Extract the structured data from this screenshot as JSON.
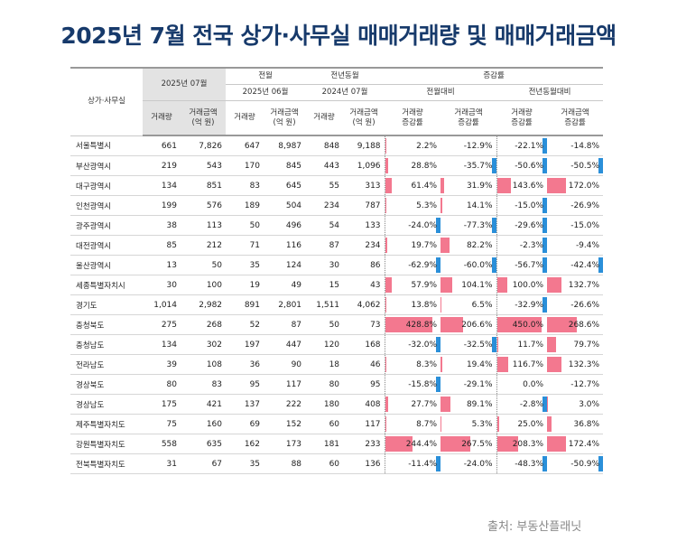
{
  "title": "2025년 7월 전국 상가·사무실 매매거래량 및 매매거래금액",
  "source": "출처: 부동산플래닛",
  "header": {
    "region": "상가·사무실",
    "current_period": "2025년 07월",
    "prev_month_group": "전월",
    "prev_month": "2025년 06월",
    "prev_year_group": "전년동월",
    "prev_year": "2024년 07월",
    "rate_group": "증감률",
    "mom": "전월대비",
    "yoy": "전년동월대비",
    "volume": "거래량",
    "amount_line1": "거래금액",
    "amount_line2": "(억 원)",
    "vol_rate_line1": "거래량",
    "vol_rate_line2": "증감률",
    "amt_rate_line1": "거래금액",
    "amt_rate_line2": "증감률"
  },
  "rows": [
    {
      "region": "서울특별시",
      "vol": "661",
      "amt": "7,826",
      "pm_vol": "647",
      "pm_amt": "8,987",
      "py_vol": "848",
      "py_amt": "9,188",
      "mom_vol": "2.2%",
      "mom_amt": "-12.9%",
      "yoy_vol": "-22.1%",
      "yoy_amt": "-14.8%"
    },
    {
      "region": "부산광역시",
      "vol": "219",
      "amt": "543",
      "pm_vol": "170",
      "pm_amt": "845",
      "py_vol": "443",
      "py_amt": "1,096",
      "mom_vol": "28.8%",
      "mom_amt": "-35.7%",
      "yoy_vol": "-50.6%",
      "yoy_amt": "-50.5%"
    },
    {
      "region": "대구광역시",
      "vol": "134",
      "amt": "851",
      "pm_vol": "83",
      "pm_amt": "645",
      "py_vol": "55",
      "py_amt": "313",
      "mom_vol": "61.4%",
      "mom_amt": "31.9%",
      "yoy_vol": "143.6%",
      "yoy_amt": "172.0%"
    },
    {
      "region": "인천광역시",
      "vol": "199",
      "amt": "576",
      "pm_vol": "189",
      "pm_amt": "504",
      "py_vol": "234",
      "py_amt": "787",
      "mom_vol": "5.3%",
      "mom_amt": "14.1%",
      "yoy_vol": "-15.0%",
      "yoy_amt": "-26.9%"
    },
    {
      "region": "광주광역시",
      "vol": "38",
      "amt": "113",
      "pm_vol": "50",
      "pm_amt": "496",
      "py_vol": "54",
      "py_amt": "133",
      "mom_vol": "-24.0%",
      "mom_amt": "-77.3%",
      "yoy_vol": "-29.6%",
      "yoy_amt": "-15.0%"
    },
    {
      "region": "대전광역시",
      "vol": "85",
      "amt": "212",
      "pm_vol": "71",
      "pm_amt": "116",
      "py_vol": "87",
      "py_amt": "234",
      "mom_vol": "19.7%",
      "mom_amt": "82.2%",
      "yoy_vol": "-2.3%",
      "yoy_amt": "-9.4%"
    },
    {
      "region": "울산광역시",
      "vol": "13",
      "amt": "50",
      "pm_vol": "35",
      "pm_amt": "124",
      "py_vol": "30",
      "py_amt": "86",
      "mom_vol": "-62.9%",
      "mom_amt": "-60.0%",
      "yoy_vol": "-56.7%",
      "yoy_amt": "-42.4%"
    },
    {
      "region": "세종특별자치시",
      "vol": "30",
      "amt": "100",
      "pm_vol": "19",
      "pm_amt": "49",
      "py_vol": "15",
      "py_amt": "43",
      "mom_vol": "57.9%",
      "mom_amt": "104.1%",
      "yoy_vol": "100.0%",
      "yoy_amt": "132.7%"
    },
    {
      "region": "경기도",
      "vol": "1,014",
      "amt": "2,982",
      "pm_vol": "891",
      "pm_amt": "2,801",
      "py_vol": "1,511",
      "py_amt": "4,062",
      "mom_vol": "13.8%",
      "mom_amt": "6.5%",
      "yoy_vol": "-32.9%",
      "yoy_amt": "-26.6%"
    },
    {
      "region": "충청북도",
      "vol": "275",
      "amt": "268",
      "pm_vol": "52",
      "pm_amt": "87",
      "py_vol": "50",
      "py_amt": "73",
      "mom_vol": "428.8%",
      "mom_amt": "206.6%",
      "yoy_vol": "450.0%",
      "yoy_amt": "268.6%"
    },
    {
      "region": "충청남도",
      "vol": "134",
      "amt": "302",
      "pm_vol": "197",
      "pm_amt": "447",
      "py_vol": "120",
      "py_amt": "168",
      "mom_vol": "-32.0%",
      "mom_amt": "-32.5%",
      "yoy_vol": "11.7%",
      "yoy_amt": "79.7%"
    },
    {
      "region": "전라남도",
      "vol": "39",
      "amt": "108",
      "pm_vol": "36",
      "pm_amt": "90",
      "py_vol": "18",
      "py_amt": "46",
      "mom_vol": "8.3%",
      "mom_amt": "19.4%",
      "yoy_vol": "116.7%",
      "yoy_amt": "132.3%"
    },
    {
      "region": "경상북도",
      "vol": "80",
      "amt": "83",
      "pm_vol": "95",
      "pm_amt": "117",
      "py_vol": "80",
      "py_amt": "95",
      "mom_vol": "-15.8%",
      "mom_amt": "-29.1%",
      "yoy_vol": "0.0%",
      "yoy_amt": "-12.7%"
    },
    {
      "region": "경상남도",
      "vol": "175",
      "amt": "421",
      "pm_vol": "137",
      "pm_amt": "222",
      "py_vol": "180",
      "py_amt": "408",
      "mom_vol": "27.7%",
      "mom_amt": "89.1%",
      "yoy_vol": "-2.8%",
      "yoy_amt": "3.0%"
    },
    {
      "region": "제주특별자치도",
      "vol": "75",
      "amt": "160",
      "pm_vol": "69",
      "pm_amt": "152",
      "py_vol": "60",
      "py_amt": "117",
      "mom_vol": "8.7%",
      "mom_amt": "5.3%",
      "yoy_vol": "25.0%",
      "yoy_amt": "36.8%"
    },
    {
      "region": "강원특별자치도",
      "vol": "558",
      "amt": "635",
      "pm_vol": "162",
      "pm_amt": "173",
      "py_vol": "181",
      "py_amt": "233",
      "mom_vol": "244.4%",
      "mom_amt": "267.5%",
      "yoy_vol": "208.3%",
      "yoy_amt": "172.4%"
    },
    {
      "region": "전북특별자치도",
      "vol": "31",
      "amt": "67",
      "pm_vol": "35",
      "pm_amt": "88",
      "py_vol": "60",
      "py_amt": "136",
      "mom_vol": "-11.4%",
      "mom_amt": "-24.0%",
      "yoy_vol": "-48.3%",
      "yoy_amt": "-50.9%"
    }
  ],
  "colors": {
    "title": "#173a6b",
    "positive_bar": "#f3788f",
    "negative_bar": "#2a8fd9",
    "header_shade": "#e3e3e3"
  }
}
